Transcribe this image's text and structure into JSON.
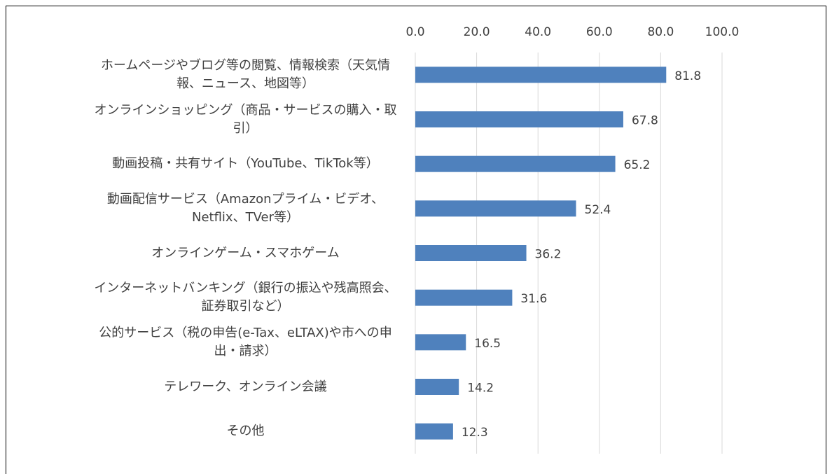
{
  "chart_data": {
    "type": "bar",
    "orientation": "horizontal",
    "categories": [
      "ホームページやブログ等の閲覧、情報検索（天気情報、ニュース、地図等）",
      "オンラインショッピング（商品・サービスの購入・取引）",
      "動画投稿・共有サイト（YouTube、TikTok等）",
      "動画配信サービス（Amazonプライム・ビデオ、Netflix、TVer等）",
      "オンラインゲーム・スマホゲーム",
      "インターネットバンキング（銀行の振込や残高照会、証券取引など）",
      "公的サービス（税の申告(e-Tax、eLTAX)や市への申出・請求）",
      "テレワーク、オンライン会議",
      "その他"
    ],
    "values": [
      81.8,
      67.8,
      65.2,
      52.4,
      36.2,
      31.6,
      16.5,
      14.2,
      12.3
    ],
    "color": "#4f81bd",
    "xlim": [
      0,
      100
    ],
    "xticks": [
      {
        "value": 0,
        "label": "0.0"
      },
      {
        "value": 20,
        "label": "20.0"
      },
      {
        "value": 40,
        "label": "40.0"
      },
      {
        "value": 60,
        "label": "60.0"
      },
      {
        "value": 80,
        "label": "80.0"
      },
      {
        "value": 100,
        "label": "100.0"
      }
    ],
    "grid": true
  }
}
